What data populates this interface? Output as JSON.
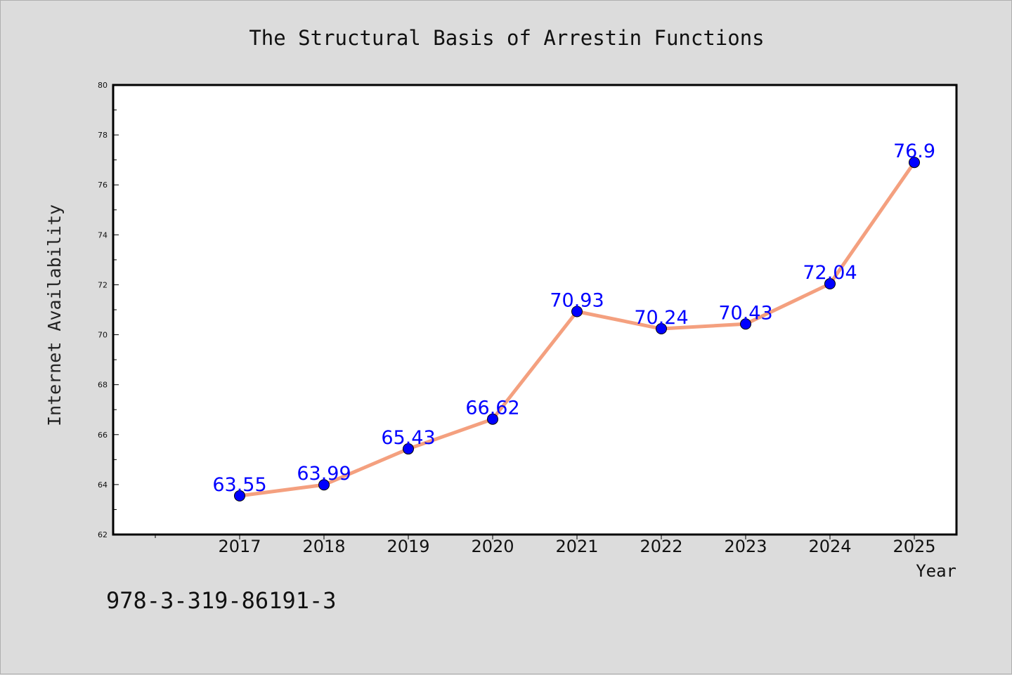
{
  "chart_data": {
    "type": "line",
    "title": "The Structural Basis of Arrestin Functions",
    "xlabel": "Year",
    "ylabel": "Internet Availability",
    "categories": [
      "2017",
      "2018",
      "2019",
      "2020",
      "2021",
      "2022",
      "2023",
      "2024",
      "2025"
    ],
    "values": [
      63.55,
      63.99,
      65.43,
      66.62,
      70.93,
      70.24,
      70.43,
      72.04,
      76.9
    ],
    "data_labels": [
      "63.55",
      "63.99",
      "65.43",
      "66.62",
      "70.93",
      "70.24",
      "70.43",
      "72.04",
      "76.9"
    ],
    "ylim": [
      62,
      80
    ],
    "yticks": [
      62,
      64,
      66,
      68,
      70,
      72,
      74,
      76,
      78,
      80
    ],
    "grid": false,
    "line_color": "#f4a07f",
    "marker_color": "#0000ff",
    "label_color": "#0000ff",
    "background": "#dcdcdc",
    "plot_background": "#ffffff"
  },
  "footer": {
    "text": "978-3-319-86191-3"
  }
}
